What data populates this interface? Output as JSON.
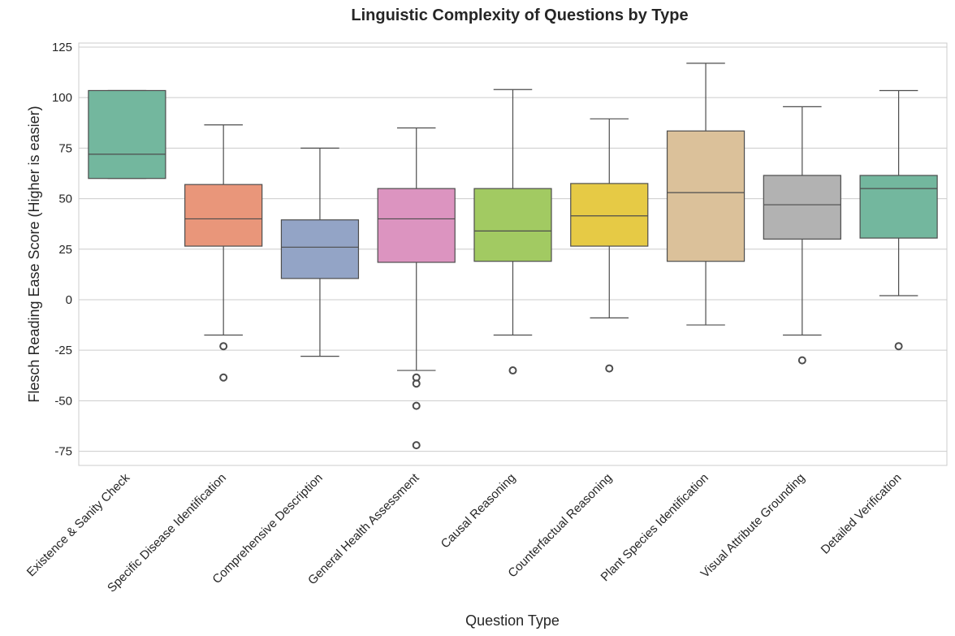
{
  "chart_data": {
    "type": "box",
    "title": "Linguistic Complexity of Questions by Type",
    "xlabel": "Question Type",
    "ylabel": "Flesch Reading Ease Score (Higher is easier)",
    "ylim": [
      -82,
      127
    ],
    "yticks": [
      -75,
      -50,
      -25,
      0,
      25,
      50,
      75,
      100,
      125
    ],
    "grid": true,
    "categories": [
      "Existence & Sanity Check",
      "Specific Disease Identification",
      "Comprehensive Description",
      "General Health Assessment",
      "Causal Reasoning",
      "Counterfactual Reasoning",
      "Plant Species Identification",
      "Visual Attribute Grounding",
      "Detailed Verification"
    ],
    "boxes": [
      {
        "category": "Existence & Sanity Check",
        "whisker_low": 60,
        "q1": 60,
        "median": 72,
        "q3": 103.5,
        "whisker_high": 103.5,
        "outliers": [],
        "color": "#73b79e"
      },
      {
        "category": "Specific Disease Identification",
        "whisker_low": -17.5,
        "q1": 26.5,
        "median": 40,
        "q3": 57,
        "whisker_high": 86.5,
        "outliers": [
          -23,
          -38.5
        ],
        "color": "#e9967a"
      },
      {
        "category": "Comprehensive Description",
        "whisker_low": -28,
        "q1": 10.5,
        "median": 26,
        "q3": 39.5,
        "whisker_high": 75,
        "outliers": [],
        "color": "#93a4c6"
      },
      {
        "category": "General Health Assessment",
        "whisker_low": -35,
        "q1": 18.5,
        "median": 40,
        "q3": 55,
        "whisker_high": 85,
        "outliers": [
          -38.5,
          -41.5,
          -52.5,
          -72
        ],
        "color": "#dc94c0"
      },
      {
        "category": "Causal Reasoning",
        "whisker_low": -17.5,
        "q1": 19,
        "median": 34,
        "q3": 55,
        "whisker_high": 104,
        "outliers": [
          -35
        ],
        "color": "#a2ca62"
      },
      {
        "category": "Counterfactual Reasoning",
        "whisker_low": -9,
        "q1": 26.5,
        "median": 41.5,
        "q3": 57.5,
        "whisker_high": 89.5,
        "outliers": [
          -34
        ],
        "color": "#e6ca45"
      },
      {
        "category": "Plant Species Identification",
        "whisker_low": -12.5,
        "q1": 19,
        "median": 53,
        "q3": 83.5,
        "whisker_high": 117,
        "outliers": [],
        "color": "#dbc19a"
      },
      {
        "category": "Visual Attribute Grounding",
        "whisker_low": -17.5,
        "q1": 30,
        "median": 47,
        "q3": 61.5,
        "whisker_high": 95.5,
        "outliers": [
          -30
        ],
        "color": "#b2b2b2"
      },
      {
        "category": "Detailed Verification",
        "whisker_low": 2,
        "q1": 30.5,
        "median": 55,
        "q3": 61.5,
        "whisker_high": 103.5,
        "outliers": [
          -23
        ],
        "color": "#73b79e"
      }
    ]
  }
}
